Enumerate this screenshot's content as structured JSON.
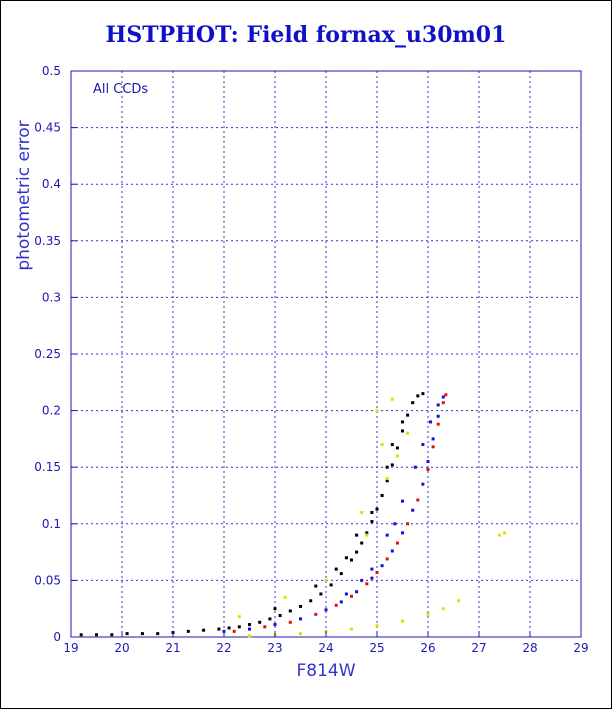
{
  "chart_data": {
    "type": "scatter",
    "title": "HSTPHOT: Field fornax_u30m01",
    "xlabel": "F814W",
    "ylabel": "photometric error",
    "annotation": "All CCDs",
    "xlim": [
      19,
      29
    ],
    "ylim": [
      0,
      0.5
    ],
    "x_ticks": [
      "19",
      "20",
      "21",
      "22",
      "23",
      "24",
      "25",
      "26",
      "27",
      "28",
      "29"
    ],
    "y_ticks": [
      "0",
      "0.05",
      "0.1",
      "0.15",
      "0.2",
      "0.25",
      "0.3",
      "0.35",
      "0.4",
      "0.45",
      "0.5"
    ],
    "grid": true,
    "series": [
      {
        "color": "#000000",
        "points": [
          [
            19.2,
            0.002
          ],
          [
            19.5,
            0.002
          ],
          [
            19.8,
            0.002
          ],
          [
            20.1,
            0.003
          ],
          [
            20.4,
            0.003
          ],
          [
            20.7,
            0.003
          ],
          [
            21.0,
            0.004
          ],
          [
            21.3,
            0.005
          ],
          [
            21.6,
            0.006
          ],
          [
            21.9,
            0.007
          ],
          [
            22.1,
            0.008
          ],
          [
            22.3,
            0.009
          ],
          [
            22.5,
            0.011
          ],
          [
            22.7,
            0.013
          ],
          [
            22.9,
            0.016
          ],
          [
            23.1,
            0.019
          ],
          [
            23.3,
            0.023
          ],
          [
            23.5,
            0.027
          ],
          [
            23.7,
            0.032
          ],
          [
            23.9,
            0.038
          ],
          [
            24.1,
            0.046
          ],
          [
            24.3,
            0.056
          ],
          [
            24.5,
            0.068
          ],
          [
            24.6,
            0.075
          ],
          [
            24.7,
            0.083
          ],
          [
            24.8,
            0.092
          ],
          [
            24.9,
            0.102
          ],
          [
            25.0,
            0.113
          ],
          [
            25.1,
            0.125
          ],
          [
            25.2,
            0.138
          ],
          [
            25.3,
            0.152
          ],
          [
            25.4,
            0.167
          ],
          [
            25.5,
            0.182
          ],
          [
            25.6,
            0.196
          ],
          [
            25.7,
            0.207
          ],
          [
            25.8,
            0.213
          ],
          [
            25.9,
            0.215
          ],
          [
            24.4,
            0.07
          ],
          [
            24.2,
            0.06
          ],
          [
            24.9,
            0.11
          ],
          [
            25.2,
            0.15
          ],
          [
            25.5,
            0.19
          ],
          [
            23.8,
            0.045
          ],
          [
            23.0,
            0.025
          ],
          [
            24.6,
            0.09
          ],
          [
            25.3,
            0.17
          ]
        ]
      },
      {
        "color": "#1010e0",
        "points": [
          [
            22.0,
            0.005
          ],
          [
            22.5,
            0.007
          ],
          [
            23.0,
            0.011
          ],
          [
            23.5,
            0.016
          ],
          [
            24.0,
            0.024
          ],
          [
            24.3,
            0.031
          ],
          [
            24.6,
            0.04
          ],
          [
            24.9,
            0.052
          ],
          [
            25.1,
            0.063
          ],
          [
            25.3,
            0.076
          ],
          [
            25.5,
            0.092
          ],
          [
            25.7,
            0.112
          ],
          [
            25.9,
            0.135
          ],
          [
            26.0,
            0.155
          ],
          [
            26.1,
            0.175
          ],
          [
            26.2,
            0.195
          ],
          [
            26.3,
            0.212
          ]
        ]
      },
      {
        "color": "#e01010",
        "points": [
          [
            22.2,
            0.005
          ],
          [
            22.8,
            0.009
          ],
          [
            23.3,
            0.013
          ],
          [
            23.8,
            0.02
          ],
          [
            24.2,
            0.028
          ],
          [
            24.5,
            0.036
          ],
          [
            24.8,
            0.047
          ],
          [
            25.0,
            0.057
          ],
          [
            25.2,
            0.069
          ],
          [
            25.4,
            0.083
          ],
          [
            25.6,
            0.1
          ],
          [
            25.8,
            0.121
          ],
          [
            26.0,
            0.148
          ],
          [
            26.1,
            0.168
          ],
          [
            26.2,
            0.188
          ],
          [
            26.3,
            0.207
          ],
          [
            26.35,
            0.214
          ]
        ]
      },
      {
        "color": "#e0e000",
        "points": [
          [
            22.5,
            0.001
          ],
          [
            23.0,
            0.002
          ],
          [
            23.5,
            0.003
          ],
          [
            24.0,
            0.005
          ],
          [
            24.5,
            0.007
          ],
          [
            25.0,
            0.01
          ],
          [
            25.5,
            0.014
          ],
          [
            26.0,
            0.02
          ],
          [
            26.3,
            0.025
          ],
          [
            26.6,
            0.032
          ],
          [
            22.3,
            0.018
          ],
          [
            23.2,
            0.035
          ],
          [
            24.0,
            0.05
          ],
          [
            24.8,
            0.09
          ],
          [
            25.2,
            0.14
          ],
          [
            25.4,
            0.16
          ],
          [
            25.0,
            0.2
          ],
          [
            25.3,
            0.21
          ],
          [
            25.6,
            0.18
          ],
          [
            27.4,
            0.09
          ],
          [
            27.5,
            0.092
          ],
          [
            24.7,
            0.11
          ],
          [
            25.1,
            0.17
          ]
        ]
      },
      {
        "color": "#1010e0",
        "points": [
          [
            24.9,
            0.06
          ],
          [
            25.2,
            0.09
          ],
          [
            25.5,
            0.12
          ],
          [
            25.75,
            0.15
          ],
          [
            25.9,
            0.17
          ],
          [
            26.05,
            0.19
          ],
          [
            26.2,
            0.205
          ],
          [
            24.4,
            0.038
          ],
          [
            24.7,
            0.05
          ],
          [
            25.35,
            0.1
          ]
        ]
      }
    ]
  }
}
